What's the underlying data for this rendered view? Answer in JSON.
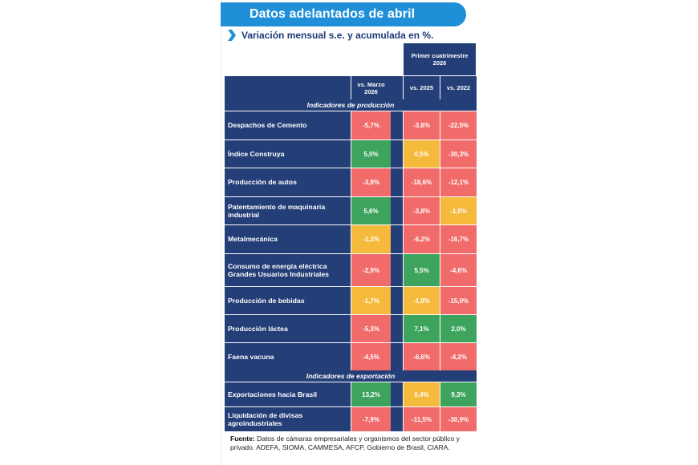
{
  "title": "Datos adelantados de abril",
  "subtitle": "Variación mensual s.e. y acumulada en %.",
  "header": {
    "group_label": "Primer cuatrimestre 2026",
    "col1": "vs. Marzo 2026",
    "col2": "vs. 2025",
    "col3": "vs. 2022"
  },
  "sections": [
    {
      "title": "Indicadores de producción"
    },
    {
      "title": "Indicadores de exportación"
    }
  ],
  "rows": [
    {
      "label": "Despachos de Cemento",
      "v1": "-5,7%",
      "v2": "-3,8%",
      "v3": "-22,5%"
    },
    {
      "label": "Índice Construya",
      "v1": "5,0%",
      "v2": "0,5%",
      "v3": "-30,3%"
    },
    {
      "label": "Producción de autos",
      "v1": "-3,9%",
      "v2": "-18,6%",
      "v3": "-12,1%"
    },
    {
      "label": "Patentamiento de maquinaria industrial",
      "v1": "5,6%",
      "v2": "-3,8%",
      "v3": "-1,0%"
    },
    {
      "label": "Metalmecánica",
      "v1": "-1,3%",
      "v2": "-6,2%",
      "v3": "-16,7%"
    },
    {
      "label": "Consumo de energía eléctrica Grandes Usuarios Industriales",
      "v1": "-2,9%",
      "v2": "5,5%",
      "v3": "-4,6%"
    },
    {
      "label": "Producción de bebidas",
      "v1": "-1,7%",
      "v2": "-1,9%",
      "v3": "-15,0%"
    },
    {
      "label": "Producción láctea",
      "v1": "-5,3%",
      "v2": "7,1%",
      "v3": "2,0%"
    },
    {
      "label": "Faena vacuna",
      "v1": "-4,5%",
      "v2": "-6,6%",
      "v3": "-4,2%"
    },
    {
      "label": "Exportaciones hacia Brasil",
      "v1": "13,2%",
      "v2": "0,4%",
      "v3": "9,3%"
    },
    {
      "label": "Liquidación de divisas agroindustriales",
      "v1": "-7,9%",
      "v2": "-11,5%",
      "v3": "-30,9%"
    }
  ],
  "colors": {
    "red": "#f26b6b",
    "orange": "#f5b93c",
    "green": "#3da35d",
    "navy": "#243e78",
    "banner": "#1f8fd8"
  },
  "cell_colors": [
    [
      "red",
      "red",
      "red"
    ],
    [
      "green",
      "orange",
      "red"
    ],
    [
      "red",
      "red",
      "red"
    ],
    [
      "green",
      "red",
      "orange"
    ],
    [
      "orange",
      "red",
      "red"
    ],
    [
      "red",
      "green",
      "red"
    ],
    [
      "orange",
      "orange",
      "red"
    ],
    [
      "red",
      "green",
      "green"
    ],
    [
      "red",
      "red",
      "red"
    ],
    [
      "green",
      "orange",
      "green"
    ],
    [
      "red",
      "red",
      "red"
    ]
  ],
  "source": {
    "label": "Fuente:",
    "text": "Datos de cámaras empresariales y organismos del sector público y privado. ADEFA, SIOMA, CAMMESA, AFCP, Gobierno de Brasil, CIARA."
  }
}
